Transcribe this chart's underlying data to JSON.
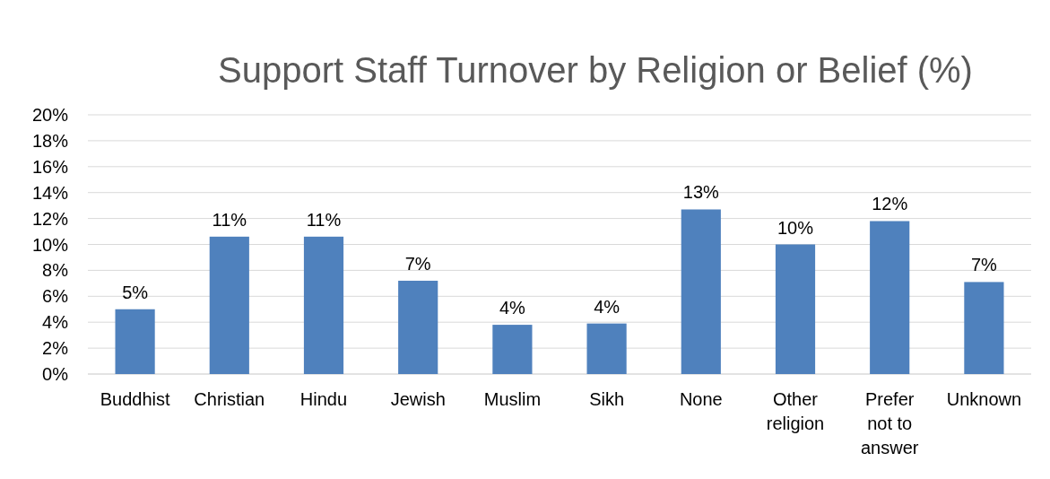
{
  "chart_data": {
    "type": "bar",
    "title": "Support Staff Turnover by Religion or Belief (%)",
    "categories": [
      "Buddhist",
      "Christian",
      "Hindu",
      "Jewish",
      "Muslim",
      "Sikh",
      "None",
      "Other religion",
      "Prefer not to answer",
      "Unknown"
    ],
    "values": [
      5.0,
      10.6,
      10.6,
      7.2,
      3.8,
      3.9,
      12.7,
      10.0,
      11.8,
      7.1
    ],
    "value_labels": [
      "5%",
      "11%",
      "11%",
      "7%",
      "4%",
      "4%",
      "13%",
      "10%",
      "12%",
      "7%"
    ],
    "color": "#4f81bd",
    "ylim": [
      0,
      20
    ],
    "yticks": [
      {
        "value": 0,
        "label": "0%"
      },
      {
        "value": 2,
        "label": "2%"
      },
      {
        "value": 4,
        "label": "4%"
      },
      {
        "value": 6,
        "label": "6%"
      },
      {
        "value": 8,
        "label": "8%"
      },
      {
        "value": 10,
        "label": "10%"
      },
      {
        "value": 12,
        "label": "12%"
      },
      {
        "value": 14,
        "label": "14%"
      },
      {
        "value": 16,
        "label": "16%"
      },
      {
        "value": 18,
        "label": "18%"
      },
      {
        "value": 20,
        "label": "20%"
      }
    ],
    "grid": "y"
  }
}
